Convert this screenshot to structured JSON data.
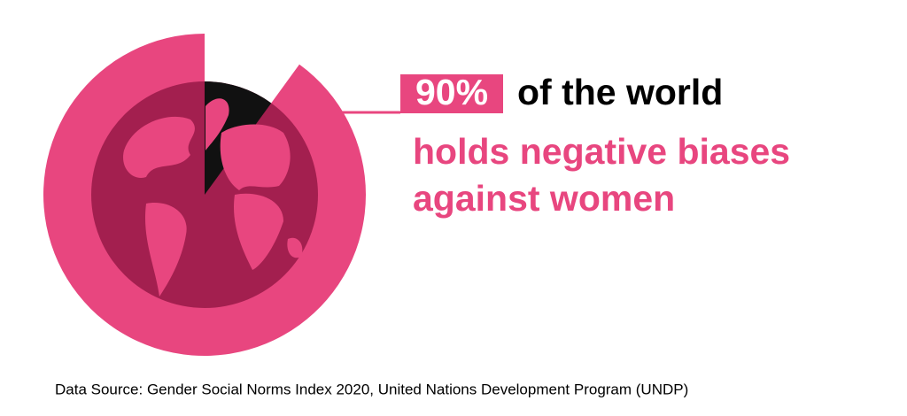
{
  "chart_data": {
    "type": "pie",
    "values": [
      90
    ],
    "value_labels": [
      "90%"
    ],
    "color": "#e8467f",
    "headline": "of the world",
    "subtitle_lines": [
      "holds negative biases",
      "against women"
    ],
    "source": "Data Source: Gender Social Norms Index 2020, United Nations Development Program (UNDP)"
  }
}
